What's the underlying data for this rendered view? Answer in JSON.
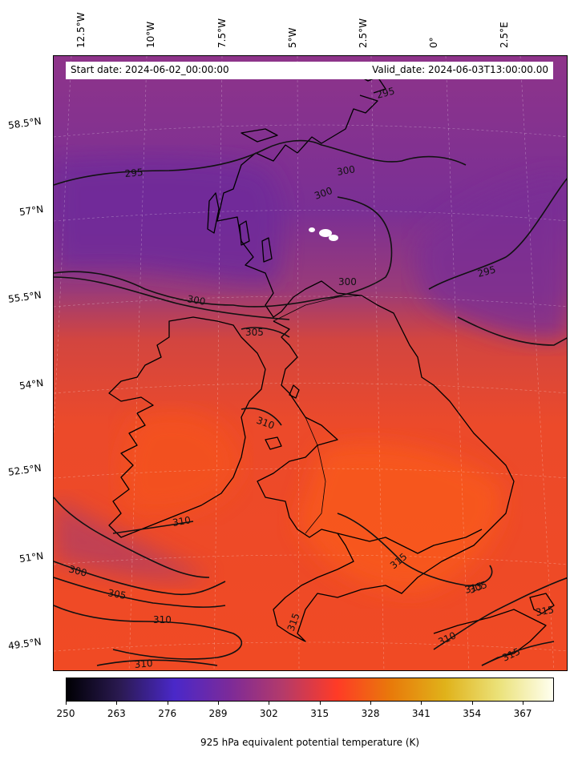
{
  "header": {
    "start_date": "Start date: 2024-06-02_00:00:00",
    "valid_date": "Valid_date: 2024-06-03T13:00:00.00"
  },
  "longitude_labels": [
    "12.5°W",
    "10°W",
    "7.5°W",
    "5°W",
    "2.5°W",
    "0°",
    "2.5°E"
  ],
  "latitude_labels": [
    "58.5°N",
    "57°N",
    "55.5°N",
    "54°N",
    "52.5°N",
    "51°N",
    "49.5°N"
  ],
  "contour_labels": [
    "295",
    "295",
    "295",
    "300",
    "300",
    "300",
    "300",
    "300",
    "305",
    "305",
    "305",
    "310",
    "310",
    "310",
    "310",
    "310",
    "315",
    "315",
    "315",
    "315",
    "315"
  ],
  "colorbar": {
    "ticks": [
      "250",
      "263",
      "276",
      "289",
      "302",
      "315",
      "328",
      "341",
      "354",
      "367"
    ],
    "label": "925 hPa equivalent potential temperature (K)",
    "colormap": "inferno-like",
    "colors": [
      "#000004",
      "#2b1a52",
      "#4a28c9",
      "#7b2a9a",
      "#b43a6a",
      "#ff3b26",
      "#e87a0a",
      "#e0b21a",
      "#ebe27a",
      "#fffff0"
    ]
  },
  "field_colors": {
    "north": "#7a2f8f",
    "mid": "#b8405f",
    "south": "#ef4626",
    "warm": "#f45a1e"
  }
}
